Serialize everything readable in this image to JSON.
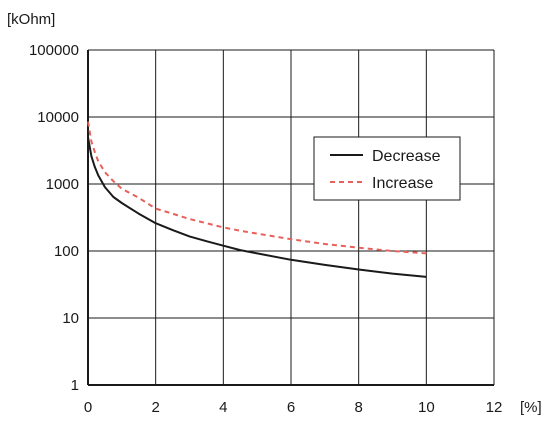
{
  "chart_data": {
    "type": "line",
    "y_unit": "[kOhm]",
    "x_unit": "[%]",
    "x_ticks": [
      "0",
      "2",
      "4",
      "6",
      "8",
      "10",
      "12"
    ],
    "y_ticks": [
      "1",
      "10",
      "100",
      "1000",
      "10000",
      "100000"
    ],
    "xlim": [
      0,
      12
    ],
    "ylim": [
      1,
      100000
    ],
    "y_scale": "log",
    "grid": true,
    "legend_position": "top-right",
    "series": [
      {
        "name": "Decrease",
        "color": "#1a1a1a",
        "style": "solid",
        "points": [
          [
            0,
            5000
          ],
          [
            0.1,
            2600
          ],
          [
            0.2,
            1800
          ],
          [
            0.3,
            1350
          ],
          [
            0.5,
            900
          ],
          [
            0.75,
            640
          ],
          [
            1,
            520
          ],
          [
            1.5,
            360
          ],
          [
            2,
            260
          ],
          [
            2.5,
            205
          ],
          [
            3,
            165
          ],
          [
            3.5,
            140
          ],
          [
            4,
            120
          ],
          [
            4.5,
            103
          ],
          [
            5,
            92
          ],
          [
            6,
            74
          ],
          [
            7,
            62
          ],
          [
            8,
            53
          ],
          [
            9,
            46
          ],
          [
            10,
            41
          ]
        ]
      },
      {
        "name": "Increase",
        "color": "#e8605a",
        "style": "dashed",
        "points": [
          [
            0,
            8500
          ],
          [
            0.1,
            4300
          ],
          [
            0.2,
            3000
          ],
          [
            0.3,
            2200
          ],
          [
            0.5,
            1500
          ],
          [
            0.75,
            1100
          ],
          [
            1,
            850
          ],
          [
            1.5,
            620
          ],
          [
            2,
            430
          ],
          [
            2.5,
            360
          ],
          [
            3,
            300
          ],
          [
            3.5,
            260
          ],
          [
            4,
            225
          ],
          [
            4.5,
            200
          ],
          [
            5,
            182
          ],
          [
            6,
            150
          ],
          [
            7,
            127
          ],
          [
            8,
            112
          ],
          [
            9,
            100
          ],
          [
            10,
            92
          ]
        ]
      }
    ]
  }
}
